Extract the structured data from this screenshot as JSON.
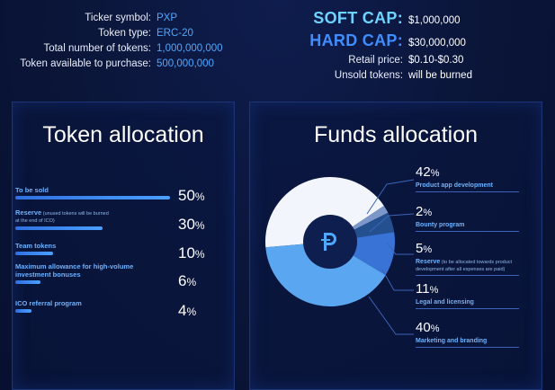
{
  "token_info": {
    "ticker_label": "Ticker symbol:",
    "ticker_value": "PXP",
    "type_label": "Token type:",
    "type_value": "ERC-20",
    "total_label": "Total number of tokens:",
    "total_value": "1,000,000,000",
    "available_label": "Token available to purchase:",
    "available_value": "500,000,000"
  },
  "caps": {
    "soft_label": "SOFT CAP:",
    "soft_value": "$1,000,000",
    "hard_label": "HARD CAP:",
    "hard_value": "$30,000,000",
    "retail_label": "Retail price:",
    "retail_value": "$0.10-$0.30",
    "unsold_label": "Unsold tokens:",
    "unsold_value": "will be burned"
  },
  "token_allocation": {
    "title": "Token allocation",
    "items": [
      {
        "label": "To be sold",
        "note": "",
        "sub": "",
        "pct": "50",
        "value": 50
      },
      {
        "label": "Reserve",
        "note": " (unused tokens will be burned",
        "sub": "at the end of ICO)",
        "pct": "30",
        "value": 30
      },
      {
        "label": "Team tokens",
        "note": "",
        "sub": "",
        "pct": "10",
        "value": 10
      },
      {
        "label": "Maximum allowance for high-volume",
        "note": "",
        "sub": "investment bonuses",
        "pct": "6",
        "value": 6
      },
      {
        "label": "ICO referral program",
        "note": "",
        "sub": "",
        "pct": "4",
        "value": 4
      }
    ],
    "percent_sign": "%"
  },
  "funds_allocation": {
    "title": "Funds allocation",
    "items": [
      {
        "pct": "42",
        "label": "Product app development",
        "note": "",
        "sub": ""
      },
      {
        "pct": "2",
        "label": "Bounty program",
        "note": "",
        "sub": ""
      },
      {
        "pct": "5",
        "label": "Reserve",
        "note": " (to be allocated towards product",
        "sub": "development after all expenses are paid)"
      },
      {
        "pct": "11",
        "label": "Legal and licensing",
        "note": "",
        "sub": ""
      },
      {
        "pct": "40",
        "label": "Marketing and branding",
        "note": "",
        "sub": ""
      }
    ],
    "percent_sign": "%",
    "logo_icon": "pxp-p-logo-icon"
  },
  "chart_data": {
    "type": "pie",
    "categories": [
      "Product app development",
      "Bounty program",
      "Reserve",
      "Legal and licensing",
      "Marketing and branding"
    ],
    "values": [
      42,
      2,
      5,
      11,
      40
    ],
    "colors": [
      "#f2f5fb",
      "#7c97c9",
      "#25508f",
      "#3a73d6",
      "#5aa6f0"
    ]
  }
}
